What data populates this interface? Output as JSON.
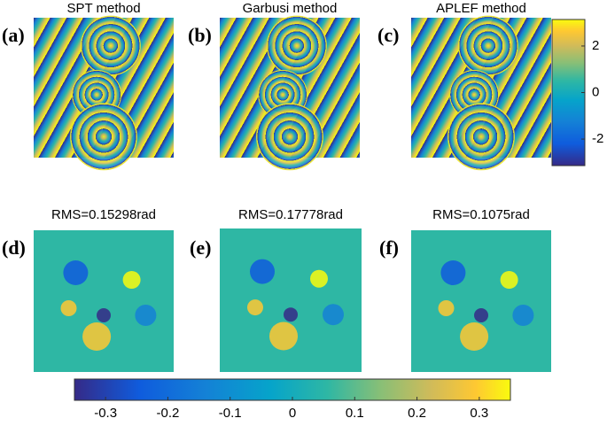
{
  "panels": [
    {
      "label": "(a)",
      "title": "SPT method"
    },
    {
      "label": "(b)",
      "title": "Garbusi method"
    },
    {
      "label": "(c)",
      "title": "APLEF method"
    },
    {
      "label": "(d)",
      "title": "RMS=0.15298rad"
    },
    {
      "label": "(e)",
      "title": "RMS=0.17778rad"
    },
    {
      "label": "(f)",
      "title": "RMS=0.1075rad"
    }
  ],
  "colorbars": [
    {
      "lim": [
        -3.14,
        3.14
      ],
      "ticks": [
        -2,
        0,
        2
      ]
    },
    {
      "lim": [
        -0.35,
        0.35
      ],
      "ticks": [
        -0.3,
        -0.2,
        -0.1,
        0,
        0.1,
        0.2,
        0.3
      ]
    }
  ]
}
